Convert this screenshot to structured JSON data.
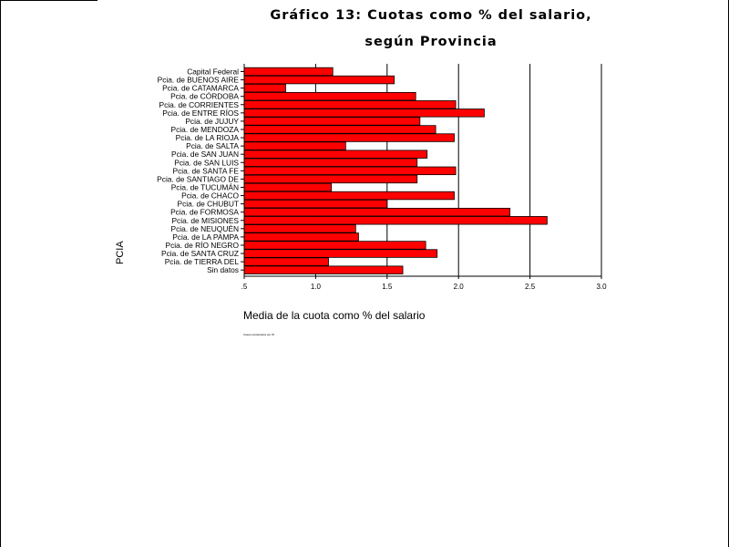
{
  "chart_data": {
    "type": "bar",
    "orientation": "horizontal",
    "title": "Gráfico 13: Cuotas como % del salario,",
    "subtitle": "según Provincia",
    "xlabel": "Media de la cuota como % del salario",
    "ylabel": "PCIA",
    "footnote": "Casos ponderados por W",
    "xlim": [
      0.5,
      3.0
    ],
    "xticks": [
      ".5",
      "1.0",
      "1.5",
      "2.0",
      "2.5",
      "3.0"
    ],
    "xtick_values": [
      0.5,
      1.0,
      1.5,
      2.0,
      2.5,
      3.0
    ],
    "grid": "vertical lines",
    "bar_color": "#ff0000",
    "categories": [
      "Capital Federal",
      "Pcia. de BUENOS AIRE",
      "Pcia. de CATAMARCA",
      "Pcia. de CÓRDOBA",
      "Pcia. de CORRIENTES",
      "Pcia. de ENTRE RÍOS",
      "Pcia. de JUJUY",
      "Pcia. de MENDOZA",
      "Pcia. de LA RIOJA",
      "Pcia. de SALTA",
      "Pcia. de SAN JUAN",
      "Pcia. de SAN LUIS",
      "Pcia. de SANTA FE",
      "Pcia. de SANTIAGO DE",
      "Pcia. de TUCUMÁN",
      "Pcia. de CHACO",
      "Pcia. de CHUBUT",
      "Pcia. de FORMOSA",
      "Pcia. de MISIONES",
      "Pcia. de NEUQUÉN",
      "Pcia. de LA PAMPA",
      "Pcia. de RÍO NEGRO",
      "Pcia. de SANTA CRUZ",
      "Pcia. de TIERRA DEL",
      "Sin datos"
    ],
    "values": [
      1.12,
      1.55,
      0.79,
      1.7,
      1.98,
      2.18,
      1.73,
      1.84,
      1.97,
      1.21,
      1.78,
      1.71,
      1.98,
      1.71,
      1.11,
      1.97,
      1.5,
      2.36,
      2.62,
      1.28,
      1.3,
      1.77,
      1.85,
      1.09,
      1.61
    ]
  }
}
